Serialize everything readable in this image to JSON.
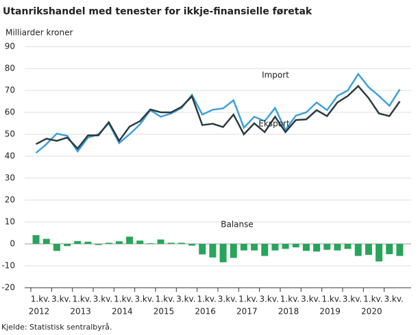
{
  "chart_data": {
    "type": "combo",
    "title": "Utanrikshandel med tenester for ikkje-finansielle føretak",
    "y_label": "Milliarder kroner",
    "source": "Kjelde: Statistisk sentralbyrå.",
    "categories": [
      "1.kv.",
      null,
      "3.kv.",
      null,
      "1.kv.",
      null,
      "3.kv.",
      null,
      "1.kv.",
      null,
      "3.kv.",
      null,
      "1.kv.",
      null,
      "3.kv.",
      null,
      "1.kv.",
      null,
      "3.kv.",
      null,
      "1.kv.",
      null,
      "3.kv.",
      null,
      "1.kv.",
      null,
      "3.kv.",
      null,
      "1.kv.",
      null,
      "3.kv.",
      null,
      "1.kv.",
      null,
      "3.kv.",
      null
    ],
    "years": [
      "2012",
      "2013",
      "2014",
      "2015",
      "2016",
      "2017",
      "2018",
      "2019",
      "2020"
    ],
    "ylim": [
      -20,
      90
    ],
    "yticks": [
      -20,
      -10,
      0,
      10,
      20,
      30,
      40,
      50,
      60,
      70,
      80,
      90
    ],
    "grid": true,
    "series": [
      {
        "name": "Import",
        "type": "line",
        "color": "#3d9fd8",
        "values": [
          41.5,
          45.5,
          50.3,
          49.3,
          42.2,
          48.5,
          50,
          55,
          46,
          50,
          54.5,
          61,
          58,
          59.5,
          62,
          68,
          59,
          61.2,
          61.8,
          65.5,
          53,
          58,
          56,
          62,
          52,
          58.5,
          60,
          64.5,
          61,
          67.5,
          70,
          77.5,
          71.5,
          67.5,
          63,
          70.5
        ]
      },
      {
        "name": "Eksport",
        "type": "line",
        "color": "#2b3a3f",
        "values": [
          45.5,
          48,
          47,
          48.5,
          43.5,
          49.5,
          49.5,
          55.5,
          47,
          53.5,
          56,
          61.3,
          60,
          60,
          62.5,
          67.3,
          54.2,
          54.8,
          53.3,
          59,
          50,
          55,
          51,
          58,
          51,
          56.5,
          56.8,
          61,
          58.3,
          64.5,
          67.5,
          72,
          66.5,
          59.5,
          58.3,
          65
        ]
      },
      {
        "name": "Balanse",
        "type": "bar",
        "color": "#27a55a",
        "values": [
          4,
          2.3,
          -3.2,
          -1,
          1.3,
          1,
          -0.5,
          0.5,
          1.2,
          3.3,
          1.5,
          0.3,
          2,
          0.5,
          0.5,
          -0.8,
          -4.8,
          -6.2,
          -8.4,
          -6.4,
          -3,
          -3,
          -5.5,
          -3,
          -2.3,
          -1.6,
          -3.2,
          -3.5,
          -2.7,
          -3,
          -2.3,
          -5.5,
          -5,
          -8,
          -4.7,
          -5.5
        ]
      }
    ]
  }
}
